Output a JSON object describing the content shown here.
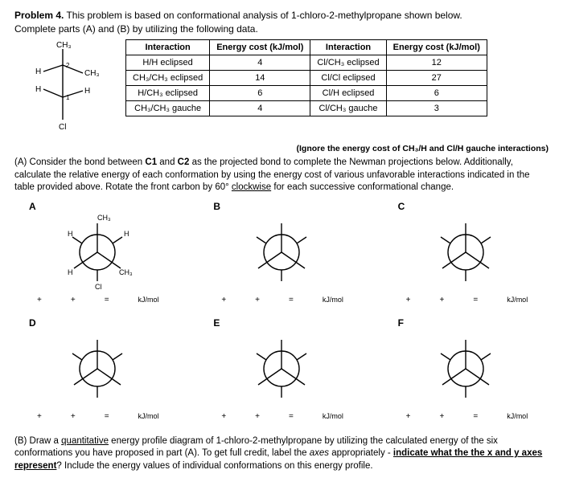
{
  "header": {
    "problem_label": "Problem 4.",
    "problem_text": " This problem is based on conformational analysis of 1-chloro-2-methylpropane shown below.",
    "instructions": "Complete parts (A) and (B) by utilizing the following data."
  },
  "molecule_labels": {
    "ch3_top": "CH₃",
    "ch3_right": "CH₃",
    "h_left": "H",
    "h_leftlow": "H",
    "h_mid": "H",
    "c2": "2",
    "c1": "1",
    "cl": "Cl"
  },
  "energy_table": {
    "headers": [
      "Interaction",
      "Energy cost (kJ/mol)",
      "Interaction",
      "Energy cost (kJ/mol)"
    ],
    "rows": [
      [
        "H/H eclipsed",
        "4",
        "Cl/CH₃ eclipsed",
        "12"
      ],
      [
        "CH₃/CH₃ eclipsed",
        "14",
        "Cl/Cl eclipsed",
        "27"
      ],
      [
        "H/CH₃ eclipsed",
        "6",
        "Cl/H eclipsed",
        "6"
      ],
      [
        "CH₃/CH₃ gauche",
        "4",
        "Cl/CH₃ gauche",
        "3"
      ]
    ]
  },
  "ignore_note": "(Ignore the energy cost of CH₃/H and Cl/H gauche interactions)",
  "part_a": {
    "prefix": "(A) Consider the bond between ",
    "c1": "C1",
    "and": " and ",
    "c2": "C2",
    "mid": " as the projected bond to complete the Newman projections below. Additionally, calculate the relative energy of each conformation by using the energy cost of various unfavorable interactions indicated in the table provided above. Rotate the front carbon by 60° ",
    "clockwise": "clockwise",
    "suffix": " for each successive conformational change."
  },
  "conformations": [
    {
      "label": "A",
      "showSubs": true
    },
    {
      "label": "B",
      "showSubs": false
    },
    {
      "label": "C",
      "showSubs": false
    },
    {
      "label": "D",
      "showSubs": false
    },
    {
      "label": "E",
      "showSubs": false
    },
    {
      "label": "F",
      "showSubs": false
    }
  ],
  "newman_subs": {
    "front_top": "CH₃",
    "front_ll": "H",
    "front_lr": "CH₃",
    "back_ul": "H",
    "back_ur": "H",
    "back_b": "Cl"
  },
  "eq": {
    "plus": "+",
    "equals": "=",
    "unit": "kJ/mol"
  },
  "part_b": {
    "prefix": "(B) Draw a ",
    "quant": "quantitative",
    "mid1": " energy profile diagram of 1-chloro-2-methylpropane by utilizing the calculated energy of the six conformations you have proposed in part (A). To get full credit, label the ",
    "axes": "axes",
    "mid2": " appropriately - ",
    "indicate": "indicate what the the x and y axes represent",
    "suffix": "? Include the energy values of individual conformations on this energy profile."
  },
  "style": {
    "line_color": "#000000",
    "circle_stroke": "#000000",
    "circle_fill": "none",
    "stroke_width": 1.4
  }
}
